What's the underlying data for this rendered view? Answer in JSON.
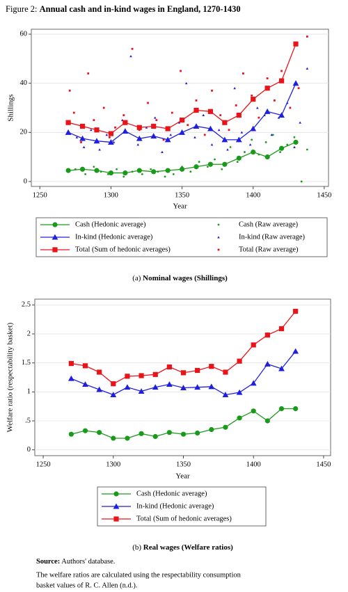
{
  "figure_label": "Figure 2:",
  "title": "Annual cash and in-kind wages in England, 1270-1430",
  "chart_data": [
    {
      "type": "line",
      "caption_label": "(a)",
      "caption": "Nominal wages (Shillings)",
      "y_label": "Shillings",
      "x_label": "Year",
      "xlim": [
        1244,
        1453
      ],
      "xticks": [
        1250,
        1300,
        1350,
        1400,
        1450
      ],
      "ylim": [
        -2,
        62
      ],
      "yticks": [
        0,
        20,
        40,
        60
      ],
      "grid": true,
      "legend_columns": 2,
      "x": [
        1270,
        1280,
        1290,
        1300,
        1310,
        1320,
        1330,
        1340,
        1350,
        1360,
        1370,
        1380,
        1390,
        1400,
        1410,
        1420,
        1430
      ],
      "series": [
        {
          "name": "Cash (Hedonic average)",
          "kind": "line",
          "marker": "circle",
          "color": "#1a9a1a",
          "values": [
            4.5,
            5,
            4.5,
            3.5,
            3.5,
            4.5,
            4,
            4.5,
            5,
            6,
            7,
            7,
            9.5,
            12,
            10,
            13.5,
            16
          ]
        },
        {
          "name": "In-kind (Hedonic average)",
          "kind": "line",
          "marker": "triangle",
          "color": "#1f1fdc",
          "values": [
            20,
            17.5,
            16.5,
            16,
            20.5,
            17.5,
            18.5,
            17,
            20,
            22.5,
            21.5,
            17,
            17,
            21.5,
            28.5,
            27,
            40
          ]
        },
        {
          "name": "Total (Sum of hedonic averages)",
          "kind": "line",
          "marker": "square",
          "color": "#e8141a",
          "values": [
            24,
            22.5,
            21,
            19.5,
            24,
            22,
            22.5,
            21.5,
            25,
            29,
            28.5,
            24,
            27,
            33.5,
            38,
            41,
            56
          ]
        },
        {
          "name": "Cash (Raw average)",
          "kind": "points",
          "marker": "dot",
          "color": "#1a9a1a",
          "x": [
            1270,
            1275,
            1282,
            1288,
            1293,
            1298,
            1304,
            1309,
            1315,
            1322,
            1328,
            1333,
            1338,
            1344,
            1350,
            1356,
            1362,
            1368,
            1373,
            1378,
            1384,
            1389,
            1394,
            1399,
            1404,
            1409,
            1414,
            1419,
            1424,
            1429,
            1434,
            1438
          ],
          "values": [
            4,
            5,
            3,
            6,
            4,
            3,
            5,
            2,
            4,
            3,
            5,
            4,
            2,
            3,
            6,
            4,
            8,
            6,
            9,
            5,
            14,
            8,
            12,
            17,
            11,
            16,
            19,
            12,
            15,
            18,
            0,
            13
          ]
        },
        {
          "name": "In-kind (Raw average)",
          "kind": "points",
          "marker": "small-triangle",
          "color": "#1f1fdc",
          "x": [
            1270,
            1276,
            1281,
            1286,
            1292,
            1297,
            1302,
            1308,
            1314,
            1319,
            1325,
            1331,
            1336,
            1342,
            1348,
            1353,
            1359,
            1365,
            1371,
            1376,
            1382,
            1387,
            1392,
            1398,
            1403,
            1408,
            1413,
            1418,
            1424,
            1429,
            1433,
            1438
          ],
          "values": [
            24,
            18,
            14,
            21,
            13,
            19,
            16,
            25,
            51,
            15,
            22,
            26,
            12,
            19,
            24,
            40,
            18,
            27,
            15,
            21,
            13,
            38,
            20,
            15,
            30,
            27,
            19,
            26,
            32,
            14,
            24,
            46
          ]
        },
        {
          "name": "Total (Raw average)",
          "kind": "points",
          "marker": "small-square",
          "color": "#e8141a",
          "x": [
            1271,
            1274,
            1279,
            1284,
            1288,
            1295,
            1299,
            1303,
            1309,
            1315,
            1320,
            1326,
            1332,
            1337,
            1343,
            1349,
            1354,
            1360,
            1366,
            1371,
            1377,
            1383,
            1388,
            1393,
            1399,
            1404,
            1410,
            1415,
            1420,
            1426,
            1432,
            1438
          ],
          "values": [
            37,
            28,
            16,
            44,
            25,
            30,
            18,
            22,
            27,
            54,
            21,
            32,
            25,
            17,
            28,
            45,
            23,
            33,
            19,
            37,
            27,
            21,
            31,
            44,
            35,
            26,
            42,
            33,
            45,
            30,
            38,
            59
          ]
        }
      ]
    },
    {
      "type": "line",
      "caption_label": "(b)",
      "caption": "Real wages (Welfare ratios)",
      "y_label": "Welfare ratio (respectability basket)",
      "x_label": "Year",
      "xlim": [
        1244,
        1455
      ],
      "xticks": [
        1250,
        1300,
        1350,
        1400,
        1450
      ],
      "ylim": [
        -0.1,
        2.6
      ],
      "yticks": [
        0,
        {
          "value": 0.5,
          "label": ".5"
        },
        1,
        1.5,
        2,
        2.5
      ],
      "grid": true,
      "legend_columns": 1,
      "x": [
        1270,
        1280,
        1290,
        1300,
        1310,
        1320,
        1330,
        1340,
        1350,
        1360,
        1370,
        1380,
        1390,
        1400,
        1410,
        1420,
        1430
      ],
      "series": [
        {
          "name": "Cash (Hedonic average)",
          "kind": "line",
          "marker": "circle",
          "color": "#1a9a1a",
          "values": [
            0.27,
            0.33,
            0.3,
            0.2,
            0.2,
            0.28,
            0.23,
            0.3,
            0.27,
            0.29,
            0.35,
            0.39,
            0.55,
            0.67,
            0.5,
            0.71,
            0.71
          ]
        },
        {
          "name": "In-kind (Hedonic average)",
          "kind": "line",
          "marker": "triangle",
          "color": "#1f1fdc",
          "values": [
            1.23,
            1.13,
            1.04,
            0.95,
            1.08,
            1.01,
            1.08,
            1.13,
            1.07,
            1.08,
            1.09,
            0.95,
            0.99,
            1.15,
            1.48,
            1.4,
            1.7
          ]
        },
        {
          "name": "Total (Sum of hedonic averages)",
          "kind": "line",
          "marker": "square",
          "color": "#e8141a",
          "values": [
            1.49,
            1.45,
            1.34,
            1.14,
            1.27,
            1.28,
            1.3,
            1.43,
            1.33,
            1.37,
            1.44,
            1.34,
            1.53,
            1.81,
            1.98,
            2.09,
            2.39
          ]
        }
      ]
    }
  ],
  "source_label": "Source:",
  "source": "Authors' database.",
  "notes": [
    "The welfare ratios are calculated using the respectability consumption",
    "basket values of R. C. Allen (n.d.)."
  ]
}
